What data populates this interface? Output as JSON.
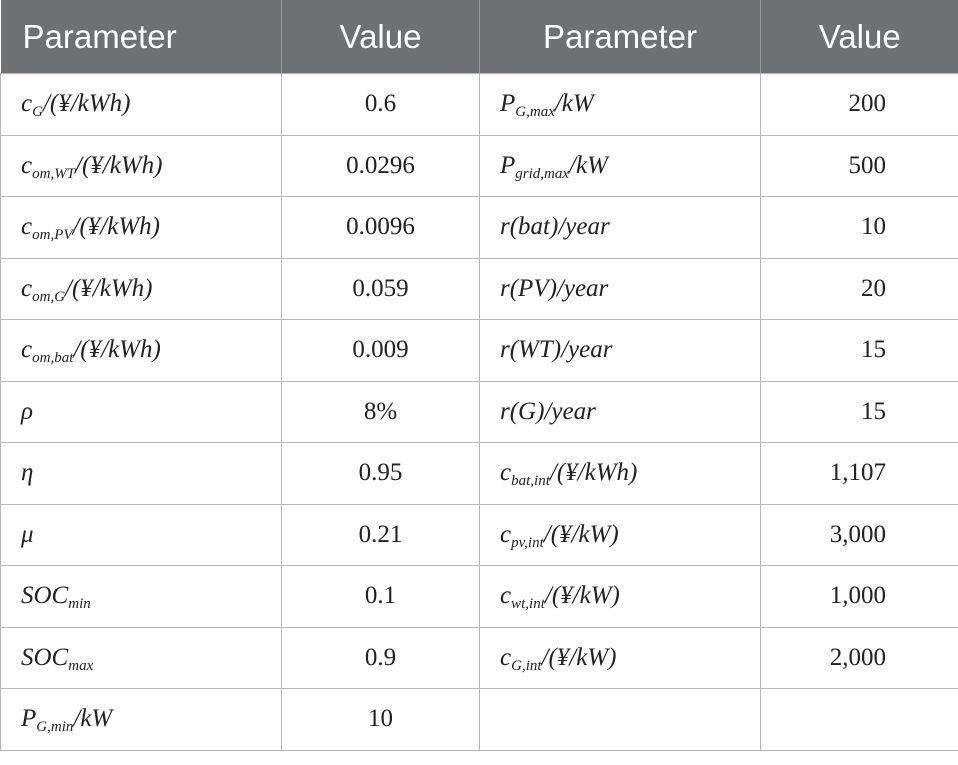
{
  "table": {
    "header": [
      "Parameter",
      "Value",
      "Parameter",
      "Value"
    ],
    "rows": [
      [
        {
          "main": "c",
          "sub": "G",
          "tail": "/(¥/kWh)"
        },
        "0.6",
        {
          "main": "P",
          "sub": "G,max",
          "tail": "/kW"
        },
        "200"
      ],
      [
        {
          "main": "c",
          "sub": "om,WT",
          "tail": "/(¥/kWh)"
        },
        "0.0296",
        {
          "main": "P",
          "sub": "grid,max",
          "tail": "/kW"
        },
        "500"
      ],
      [
        {
          "main": "c",
          "sub": "om,PV",
          "tail": "/(¥/kWh)"
        },
        "0.0096",
        {
          "main": "r(bat)/year"
        },
        "10"
      ],
      [
        {
          "main": "c",
          "sub": "om,G",
          "tail": "/(¥/kWh)"
        },
        "0.059",
        {
          "main": "r(PV)/year"
        },
        "20"
      ],
      [
        {
          "main": "c",
          "sub": "om,bat",
          "tail": "/(¥/kWh)"
        },
        "0.009",
        {
          "main": "r(WT)/year"
        },
        "15"
      ],
      [
        {
          "main": "ρ"
        },
        "8%",
        {
          "main": "r(G)/year"
        },
        "15"
      ],
      [
        {
          "main": "η"
        },
        "0.95",
        {
          "main": "c",
          "sub": "bat,int",
          "tail": "/(¥/kWh)"
        },
        "1,107"
      ],
      [
        {
          "main": "μ"
        },
        "0.21",
        {
          "main": "c",
          "sub": "pv,int",
          "tail": "/(¥/kW)"
        },
        "3,000"
      ],
      [
        {
          "main": "SOC",
          "sub": "min"
        },
        "0.1",
        {
          "main": "c",
          "sub": "wt,int",
          "tail": "/(¥/kW)"
        },
        "1,000"
      ],
      [
        {
          "main": "SOC",
          "sub": "max"
        },
        "0.9",
        {
          "main": "c",
          "sub": "G,int",
          "tail": "/(¥/kW)"
        },
        "2,000"
      ],
      [
        {
          "main": "P",
          "sub": "G,min",
          "tail": "/kW"
        },
        "10"
      ]
    ]
  }
}
